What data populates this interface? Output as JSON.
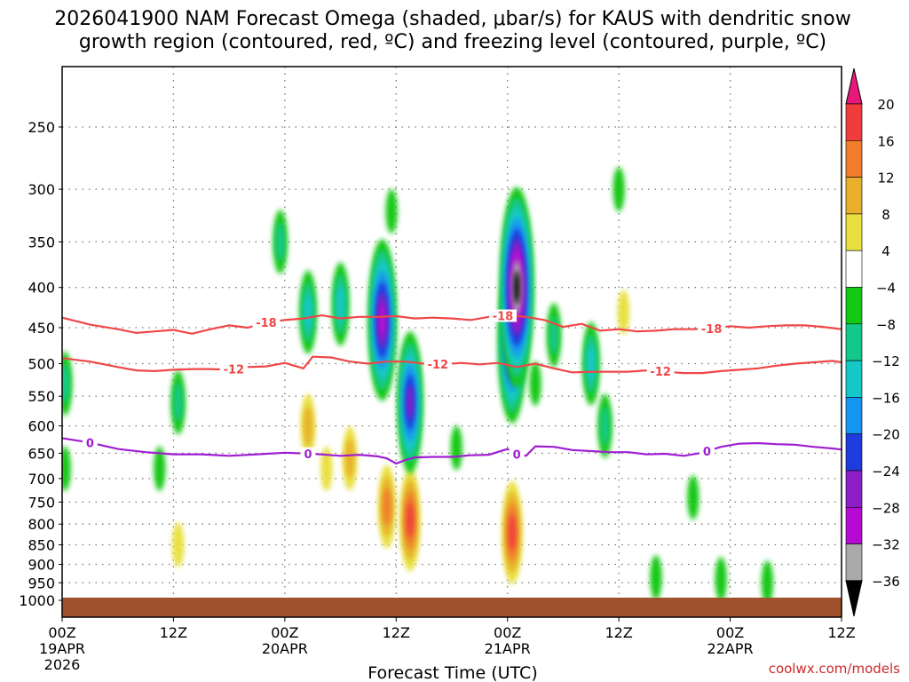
{
  "chart_data": {
    "type": "heatmap",
    "title_line1": "2026041900 NAM Forecast Omega (shaded, μbar/s) for KAUS with dendritic snow",
    "title_line2": "growth region (contoured, red, ºC) and freezing level (contoured, purple, ºC)",
    "xlabel": "Forecast Time (UTC)",
    "credit": "coolwx.com/models",
    "xlim": [
      0,
      84
    ],
    "x_ticks": [
      {
        "x": 0,
        "lines": [
          "00Z",
          "19APR",
          "2026"
        ]
      },
      {
        "x": 12,
        "lines": [
          "12Z"
        ]
      },
      {
        "x": 24,
        "lines": [
          "00Z",
          "20APR"
        ]
      },
      {
        "x": 36,
        "lines": [
          "12Z"
        ]
      },
      {
        "x": 48,
        "lines": [
          "00Z",
          "21APR"
        ]
      },
      {
        "x": 60,
        "lines": [
          "12Z"
        ]
      },
      {
        "x": 72,
        "lines": [
          "00Z",
          "22APR"
        ]
      },
      {
        "x": 84,
        "lines": [
          "12Z"
        ]
      }
    ],
    "y_axis": "pressure (hPa), log scale, inverted",
    "ylim": [
      1025,
      200
    ],
    "y_ticks": [
      250,
      300,
      350,
      400,
      450,
      500,
      550,
      600,
      650,
      700,
      750,
      800,
      850,
      900,
      950,
      1000
    ],
    "grid": true,
    "colorbar": {
      "labels": [
        "20",
        "16",
        "12",
        "8",
        "4",
        "−4",
        "−8",
        "−12",
        "−16",
        "−20",
        "−24",
        "−28",
        "−32",
        "−36"
      ],
      "colors": [
        "#e8187a",
        "#f03c3c",
        "#f07c2c",
        "#e8b02c",
        "#e8e040",
        "#ffffff",
        "#14c814",
        "#14c88c",
        "#14c8c8",
        "#1496f0",
        "#1e3cdc",
        "#8c1ec8",
        "#b40ad2",
        "#aaaaaa",
        "#000000"
      ]
    },
    "omega_features": [
      {
        "x": 0.3,
        "p": 530,
        "v": -8
      },
      {
        "x": 0.3,
        "p": 680,
        "v": -6
      },
      {
        "x": 12.5,
        "p": 560,
        "v": -10
      },
      {
        "x": 10.5,
        "p": 680,
        "v": -6
      },
      {
        "x": 12.5,
        "p": 850,
        "v": 6
      },
      {
        "x": 23.5,
        "p": 350,
        "v": -10
      },
      {
        "x": 26.5,
        "p": 430,
        "v": -12
      },
      {
        "x": 30,
        "p": 420,
        "v": -14
      },
      {
        "x": 34.5,
        "p": 440,
        "v": -28
      },
      {
        "x": 37.5,
        "p": 560,
        "v": -26
      },
      {
        "x": 35.5,
        "p": 320,
        "v": -6
      },
      {
        "x": 26.5,
        "p": 600,
        "v": 8
      },
      {
        "x": 28.5,
        "p": 680,
        "v": 6
      },
      {
        "x": 31,
        "p": 660,
        "v": 10
      },
      {
        "x": 35,
        "p": 760,
        "v": 14
      },
      {
        "x": 37.5,
        "p": 790,
        "v": 18
      },
      {
        "x": 42.5,
        "p": 640,
        "v": -6
      },
      {
        "x": 49,
        "p": 400,
        "v": -36
      },
      {
        "x": 48.5,
        "p": 470,
        "v": -30
      },
      {
        "x": 48.5,
        "p": 820,
        "v": 18
      },
      {
        "x": 51,
        "p": 530,
        "v": -6
      },
      {
        "x": 53,
        "p": 460,
        "v": -8
      },
      {
        "x": 57,
        "p": 500,
        "v": -14
      },
      {
        "x": 58.5,
        "p": 600,
        "v": -10
      },
      {
        "x": 60,
        "p": 300,
        "v": -6
      },
      {
        "x": 60.5,
        "p": 430,
        "v": 6
      },
      {
        "x": 68,
        "p": 740,
        "v": -6
      },
      {
        "x": 64,
        "p": 935,
        "v": -6
      },
      {
        "x": 71,
        "p": 940,
        "v": -6
      },
      {
        "x": 76,
        "p": 950,
        "v": -6
      }
    ],
    "contours": [
      {
        "label": "-18",
        "color": "#f04646",
        "points": [
          [
            0,
            437
          ],
          [
            3,
            446
          ],
          [
            6,
            452
          ],
          [
            8,
            457
          ],
          [
            10,
            455
          ],
          [
            12,
            453
          ],
          [
            14,
            458
          ],
          [
            16,
            452
          ],
          [
            18,
            447
          ],
          [
            20,
            450
          ],
          [
            22,
            443
          ],
          [
            24,
            440
          ],
          [
            26,
            438
          ],
          [
            28,
            434
          ],
          [
            30,
            438
          ],
          [
            32,
            436
          ],
          [
            34,
            436
          ],
          [
            36,
            435
          ],
          [
            38,
            438
          ],
          [
            40,
            437
          ],
          [
            42,
            438
          ],
          [
            44,
            440
          ],
          [
            46,
            436
          ],
          [
            48,
            434
          ],
          [
            50,
            436
          ],
          [
            52,
            440
          ],
          [
            54,
            449
          ],
          [
            56,
            445
          ],
          [
            58,
            454
          ],
          [
            60,
            452
          ],
          [
            62,
            455
          ],
          [
            64,
            454
          ],
          [
            66,
            452
          ],
          [
            68,
            452
          ],
          [
            70,
            451
          ],
          [
            72,
            448
          ],
          [
            74,
            450
          ],
          [
            76,
            448
          ],
          [
            78,
            447
          ],
          [
            80,
            447
          ],
          [
            82,
            449
          ],
          [
            84,
            452
          ]
        ],
        "label_x": [
          22,
          47.5,
          70
        ]
      },
      {
        "label": "-12",
        "color": "#f04646",
        "points": [
          [
            0,
            492
          ],
          [
            3,
            497
          ],
          [
            6,
            505
          ],
          [
            8,
            510
          ],
          [
            10,
            511
          ],
          [
            12,
            509
          ],
          [
            14,
            508
          ],
          [
            16,
            508
          ],
          [
            18,
            509
          ],
          [
            20,
            505
          ],
          [
            22,
            504
          ],
          [
            24,
            499
          ],
          [
            26,
            507
          ],
          [
            27,
            490
          ],
          [
            29,
            491
          ],
          [
            31,
            497
          ],
          [
            33,
            500
          ],
          [
            35,
            497
          ],
          [
            37,
            497
          ],
          [
            39,
            500
          ],
          [
            41,
            501
          ],
          [
            43,
            499
          ],
          [
            45,
            501
          ],
          [
            47,
            499
          ],
          [
            49,
            505
          ],
          [
            51,
            500
          ],
          [
            53,
            507
          ],
          [
            55,
            513
          ],
          [
            57,
            512
          ],
          [
            59,
            512
          ],
          [
            61,
            512
          ],
          [
            63,
            510
          ],
          [
            65,
            512
          ],
          [
            67,
            514
          ],
          [
            69,
            514
          ],
          [
            71,
            511
          ],
          [
            73,
            509
          ],
          [
            75,
            507
          ],
          [
            77,
            503
          ],
          [
            79,
            500
          ],
          [
            81,
            498
          ],
          [
            83,
            496
          ],
          [
            84,
            498
          ]
        ],
        "label_x": [
          18.5,
          40.5,
          64.5
        ]
      },
      {
        "label": "0",
        "color": "#a01ed2",
        "points": [
          [
            0,
            622
          ],
          [
            3,
            630
          ],
          [
            6,
            642
          ],
          [
            9,
            648
          ],
          [
            12,
            652
          ],
          [
            15,
            652
          ],
          [
            18,
            655
          ],
          [
            21,
            652
          ],
          [
            24,
            649
          ],
          [
            27,
            651
          ],
          [
            30,
            655
          ],
          [
            32,
            653
          ],
          [
            34,
            656
          ],
          [
            35,
            660
          ],
          [
            36,
            670
          ],
          [
            37,
            663
          ],
          [
            38,
            658
          ],
          [
            40,
            657
          ],
          [
            42,
            657
          ],
          [
            44,
            654
          ],
          [
            46,
            653
          ],
          [
            48,
            642
          ],
          [
            49,
            652
          ],
          [
            50,
            655
          ],
          [
            51,
            637
          ],
          [
            53,
            638
          ],
          [
            55,
            644
          ],
          [
            57,
            646
          ],
          [
            59,
            648
          ],
          [
            61,
            648
          ],
          [
            63,
            652
          ],
          [
            65,
            651
          ],
          [
            67,
            655
          ],
          [
            69,
            649
          ],
          [
            71,
            638
          ],
          [
            73,
            632
          ],
          [
            75,
            631
          ],
          [
            77,
            633
          ],
          [
            79,
            634
          ],
          [
            81,
            638
          ],
          [
            83,
            641
          ],
          [
            84,
            643
          ]
        ],
        "label_x": [
          3,
          26.5,
          49,
          69.5
        ]
      }
    ]
  }
}
